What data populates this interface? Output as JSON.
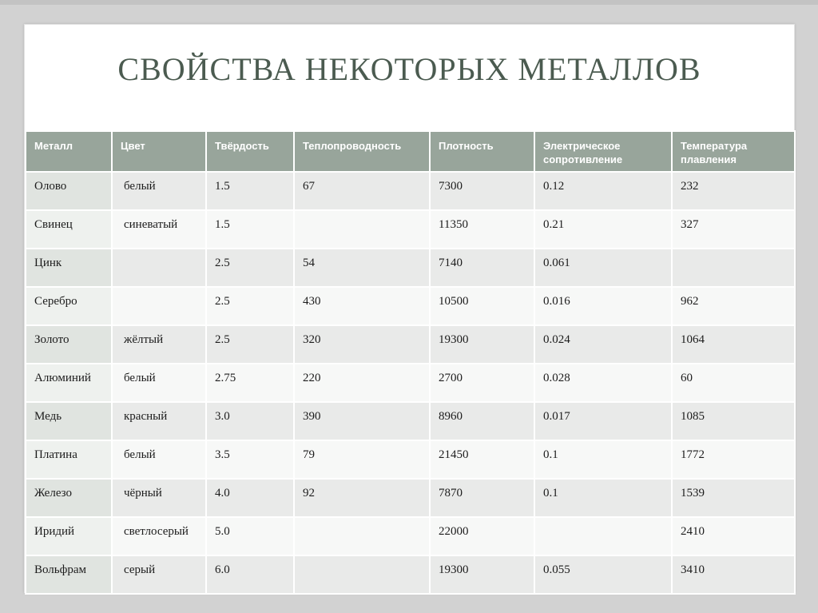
{
  "slide": {
    "title": "Свойства некоторых металлов"
  },
  "table": {
    "headers": [
      "Металл",
      "Цвет",
      "Твёрдость",
      "Теплопроводность",
      "Плотность",
      "Электрическое сопротивление",
      "Температура плавления"
    ],
    "rows": [
      [
        "Олово",
        "белый",
        "1.5",
        "67",
        "7300",
        "0.12",
        "232"
      ],
      [
        "Свинец",
        "синеватый",
        "1.5",
        "",
        "11350",
        "0.21",
        "327"
      ],
      [
        "Цинк",
        "",
        "2.5",
        "54",
        "7140",
        "0.061",
        ""
      ],
      [
        "Серебро",
        "",
        "2.5",
        "430",
        "10500",
        "0.016",
        "962"
      ],
      [
        "Золото",
        "жёлтый",
        "2.5",
        "320",
        "19300",
        "0.024",
        "1064"
      ],
      [
        "Алюминий",
        "белый",
        "2.75",
        "220",
        "2700",
        "0.028",
        "60"
      ],
      [
        "Медь",
        "красный",
        "3.0",
        "390",
        "8960",
        "0.017",
        "1085"
      ],
      [
        "Платина",
        "белый",
        "3.5",
        "79",
        "21450",
        "0.1",
        "1772"
      ],
      [
        "Железо",
        "чёрный",
        "4.0",
        "92",
        "7870",
        "0.1",
        "1539"
      ],
      [
        "Иридий",
        "светлосерый",
        "5.0",
        "",
        "22000",
        "",
        "2410"
      ],
      [
        "Вольфрам",
        "серый",
        "6.0",
        "",
        "19300",
        "0.055",
        "3410"
      ]
    ]
  },
  "colors": {
    "page_bg": "#d2d2d2",
    "edge_strip": "#c3c3c3",
    "slide_bg": "#ffffff",
    "title_color": "#4b5b50",
    "header_bg": "#98a59b",
    "header_text": "#ffffff",
    "row_odd": "#e9eae9",
    "row_even": "#f7f8f7",
    "first_col_odd": "#e0e4e0",
    "first_col_even": "#eef1ee",
    "cell_text": "#1c1c1c",
    "grid_line": "#ffffff"
  }
}
